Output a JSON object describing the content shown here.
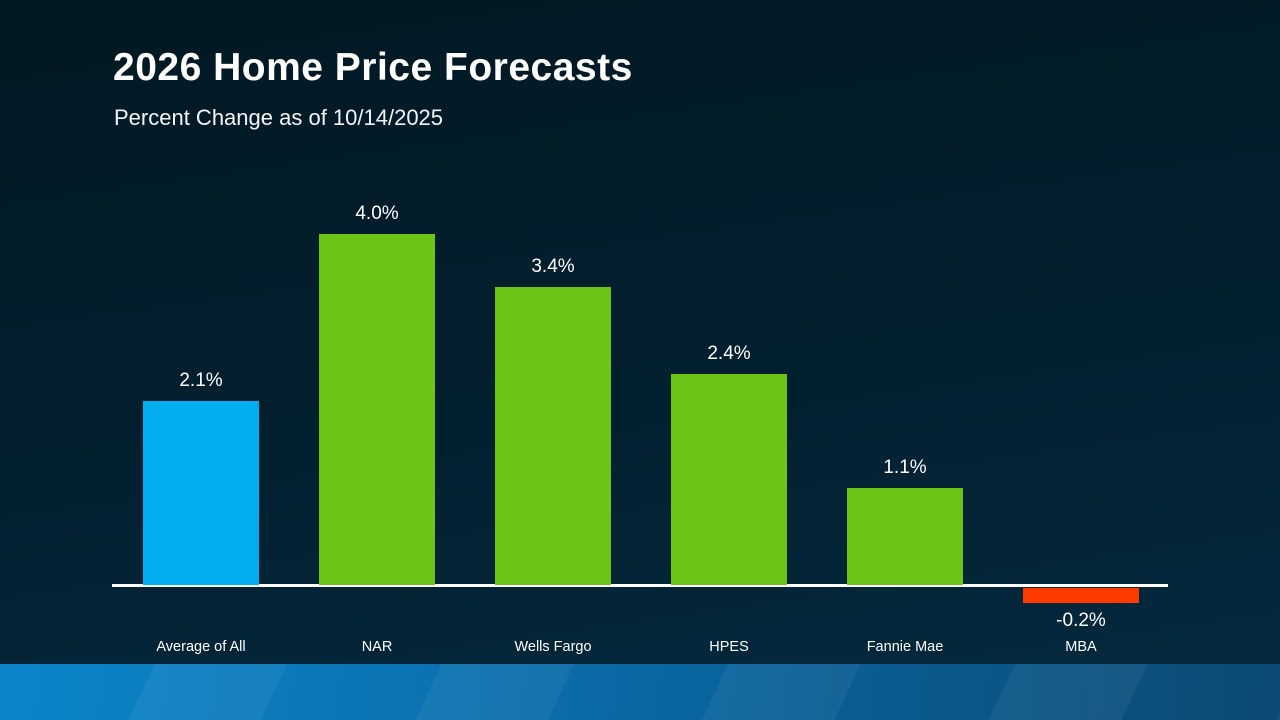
{
  "slide": {
    "title": "2026 Home Price Forecasts",
    "subtitle": "Percent Change as of 10/14/2025"
  },
  "chart_data": {
    "type": "bar",
    "title": "2026 Home Price Forecasts",
    "subtitle": "Percent Change as of 10/14/2025",
    "categories": [
      "Average of All",
      "NAR",
      "Wells Fargo",
      "HPES",
      "Fannie Mae",
      "MBA"
    ],
    "values": [
      2.1,
      4.0,
      3.4,
      2.4,
      1.1,
      -0.2
    ],
    "value_labels": [
      "2.1%",
      "4.0%",
      "3.4%",
      "2.4%",
      "1.1%",
      "-0.2%"
    ],
    "bar_colors": [
      "#00AEEF",
      "#6CC417",
      "#6CC417",
      "#6CC417",
      "#6CC417",
      "#FF3B00"
    ],
    "xlabel": "",
    "ylabel": "",
    "ylim": [
      -0.5,
      4.5
    ],
    "grid": false,
    "legend": false,
    "baseline_axis_color": "#FFFFFF",
    "data_label_color": "#FFFFFF"
  },
  "colors": {
    "background_top": "#021822",
    "background_bottom": "#052A40",
    "footer_gradient_left": "#0C85CB",
    "footer_gradient_right": "#0B4A72",
    "accent_blue": "#00AEEF",
    "accent_green": "#6CC417",
    "accent_red": "#FF3B00"
  }
}
